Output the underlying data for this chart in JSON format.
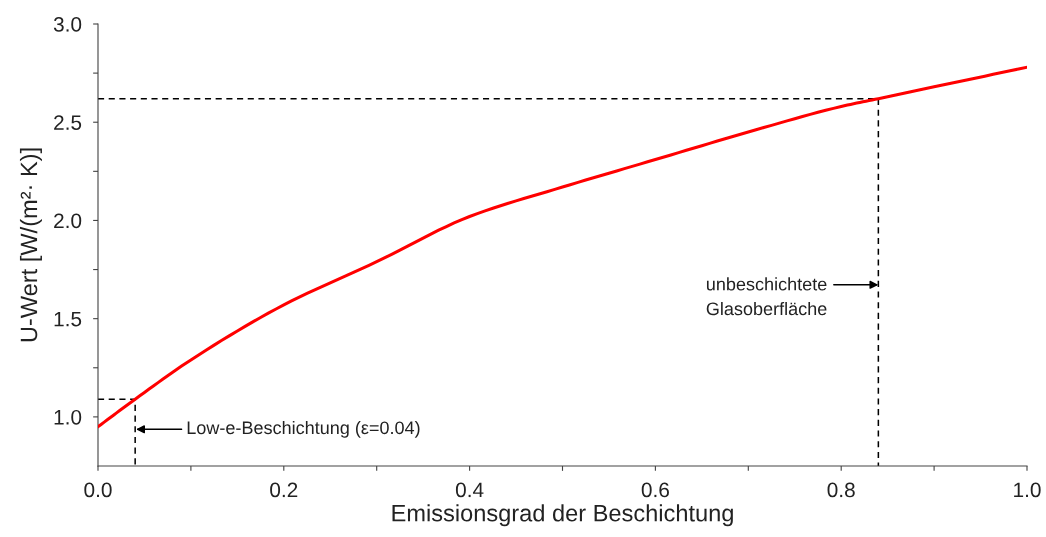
{
  "chart_data": {
    "type": "line",
    "xlabel": "Emissionsgrad der Beschichtung",
    "ylabel": "U-Wert [W/(m²· K)]",
    "xlim": [
      0,
      1.0
    ],
    "ylim": [
      0.75,
      3.0
    ],
    "xticks": [
      {
        "value": 0,
        "label": "0.0"
      },
      {
        "value": 0.1,
        "label": null
      },
      {
        "value": 0.2,
        "label": "0.2"
      },
      {
        "value": 0.3,
        "label": null
      },
      {
        "value": 0.4,
        "label": "0.4"
      },
      {
        "value": 0.5,
        "label": null
      },
      {
        "value": 0.6,
        "label": "0.6"
      },
      {
        "value": 0.7,
        "label": null
      },
      {
        "value": 0.8,
        "label": "0.8"
      },
      {
        "value": 0.9,
        "label": null
      },
      {
        "value": 1.0,
        "label": "1.0"
      }
    ],
    "yticks": [
      {
        "value": 1.0,
        "label": "1.0"
      },
      {
        "value": 1.25,
        "label": null
      },
      {
        "value": 1.5,
        "label": "1.5"
      },
      {
        "value": 1.75,
        "label": null
      },
      {
        "value": 2.0,
        "label": "2.0"
      },
      {
        "value": 2.25,
        "label": null
      },
      {
        "value": 2.5,
        "label": "2.5"
      },
      {
        "value": 2.75,
        "label": null
      },
      {
        "value": 3.0,
        "label": "3.0"
      }
    ],
    "grid": false,
    "series": [
      {
        "color": "#ff0000",
        "x": [
          0,
          0.04,
          0.1,
          0.2,
          0.3,
          0.4,
          0.5,
          0.6,
          0.7,
          0.8,
          0.84,
          0.9,
          1.0
        ],
        "values": [
          0.95,
          1.09,
          1.29,
          1.57,
          1.79,
          2.02,
          2.17,
          2.31,
          2.45,
          2.58,
          2.62,
          2.68,
          2.78
        ],
        "line_style": "solid"
      },
      {
        "color": "#000000",
        "x": [
          0,
          0.04,
          0.04
        ],
        "values": [
          1.09,
          1.09,
          0.75
        ],
        "line_style": "dashed"
      },
      {
        "color": "#000000",
        "x": [
          0,
          0.84,
          0.84
        ],
        "values": [
          2.62,
          2.62,
          0.75
        ],
        "line_style": "dashed"
      }
    ],
    "annotations": [
      "Low-e-Beschichtung (ε=0.04)",
      "unbeschichtete\nGlasoberfläche"
    ]
  }
}
